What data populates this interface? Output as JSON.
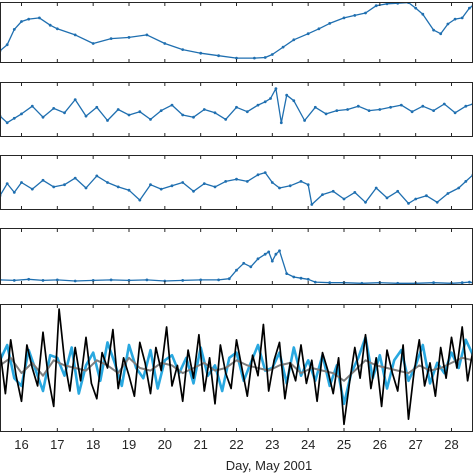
{
  "chart_data": {
    "type": "line",
    "xlabel": "Day, May 2001",
    "x_ticks": [
      16,
      17,
      18,
      19,
      20,
      21,
      22,
      23,
      24,
      25,
      26,
      27,
      28
    ],
    "xlim": [
      15.4,
      28.6
    ],
    "colors": {
      "marker_series": "#1f6fb0",
      "band_light": "#29a8e0",
      "band_mid": "#7f7f7f",
      "band_dark": "#000000"
    },
    "panels": [
      {
        "id": "panel-1",
        "ylim": [
          0,
          10
        ],
        "series": [
          {
            "style": "line-markers",
            "color": "#1f6fb0",
            "x": [
              15.4,
              15.6,
              15.8,
              16.0,
              16.2,
              16.5,
              16.8,
              17.0,
              17.5,
              18.0,
              18.5,
              19.0,
              19.5,
              20.0,
              20.5,
              21.0,
              21.5,
              22.0,
              22.5,
              22.8,
              23.0,
              23.3,
              23.6,
              24.0,
              24.3,
              24.6,
              25.0,
              25.3,
              25.6,
              25.9,
              26.2,
              26.5,
              26.8,
              27.0,
              27.2,
              27.5,
              27.7,
              27.9,
              28.1,
              28.3,
              28.5,
              28.6
            ],
            "y": [
              2.0,
              3.0,
              5.5,
              6.8,
              7.2,
              7.4,
              6.2,
              5.6,
              4.6,
              3.2,
              4.0,
              4.2,
              4.6,
              3.2,
              2.2,
              1.6,
              1.2,
              0.8,
              0.8,
              0.9,
              1.4,
              2.6,
              3.8,
              4.8,
              5.6,
              6.5,
              7.4,
              7.8,
              8.2,
              9.4,
              9.7,
              9.8,
              9.9,
              9.0,
              8.0,
              5.4,
              4.8,
              6.4,
              7.2,
              7.4,
              9.0,
              9.4
            ]
          }
        ]
      },
      {
        "id": "panel-2",
        "ylim": [
          0,
          10
        ],
        "series": [
          {
            "style": "line-markers",
            "color": "#1f6fb0",
            "x": [
              15.4,
              15.6,
              15.8,
              16.0,
              16.3,
              16.6,
              16.9,
              17.2,
              17.5,
              17.8,
              18.1,
              18.4,
              18.7,
              19.0,
              19.3,
              19.6,
              19.9,
              20.2,
              20.5,
              20.8,
              21.1,
              21.4,
              21.7,
              22.0,
              22.3,
              22.6,
              22.8,
              22.95,
              23.1,
              23.25,
              23.4,
              23.6,
              23.9,
              24.2,
              24.5,
              24.8,
              25.1,
              25.4,
              25.7,
              26.0,
              26.3,
              26.6,
              26.9,
              27.2,
              27.5,
              27.8,
              28.1,
              28.4,
              28.6
            ],
            "y": [
              3.8,
              2.6,
              3.4,
              4.2,
              5.6,
              3.6,
              5.2,
              4.4,
              6.8,
              3.8,
              5.4,
              3.0,
              5.0,
              4.0,
              4.6,
              3.2,
              4.8,
              5.8,
              4.0,
              3.6,
              5.0,
              4.4,
              3.2,
              5.4,
              4.6,
              5.8,
              6.4,
              7.0,
              8.8,
              2.6,
              7.6,
              6.6,
              3.0,
              5.4,
              4.2,
              4.8,
              5.0,
              5.6,
              4.8,
              5.0,
              5.4,
              5.8,
              4.6,
              5.6,
              4.8,
              6.0,
              4.4,
              5.6,
              6.0
            ]
          }
        ]
      },
      {
        "id": "panel-3",
        "ylim": [
          0,
          10
        ],
        "series": [
          {
            "style": "line-markers",
            "color": "#1f6fb0",
            "x": [
              15.4,
              15.6,
              15.8,
              16.0,
              16.3,
              16.6,
              16.9,
              17.2,
              17.5,
              17.8,
              18.1,
              18.4,
              18.7,
              19.0,
              19.3,
              19.6,
              19.9,
              20.2,
              20.5,
              20.8,
              21.1,
              21.4,
              21.7,
              22.0,
              22.3,
              22.6,
              22.8,
              23.0,
              23.2,
              23.5,
              23.8,
              24.0,
              24.1,
              24.4,
              24.7,
              25.0,
              25.3,
              25.6,
              25.9,
              26.2,
              26.5,
              26.8,
              27.0,
              27.3,
              27.6,
              27.9,
              28.2,
              28.4,
              28.6
            ],
            "y": [
              2.6,
              4.8,
              3.2,
              5.0,
              3.8,
              5.4,
              4.2,
              4.6,
              5.8,
              4.0,
              6.2,
              5.0,
              4.2,
              3.6,
              1.8,
              4.6,
              3.8,
              4.4,
              5.0,
              3.4,
              4.8,
              4.2,
              5.2,
              5.6,
              5.2,
              6.4,
              6.8,
              5.0,
              4.0,
              4.4,
              5.2,
              4.6,
              1.0,
              2.8,
              3.4,
              2.0,
              3.2,
              1.4,
              4.0,
              2.2,
              3.4,
              1.2,
              2.0,
              2.6,
              1.4,
              3.0,
              4.0,
              5.2,
              6.4
            ]
          }
        ]
      },
      {
        "id": "panel-4",
        "ylim": [
          0,
          10
        ],
        "series": [
          {
            "style": "line-markers",
            "color": "#1f6fb0",
            "x": [
              15.4,
              15.8,
              16.2,
              16.6,
              17.0,
              17.5,
              18.0,
              18.5,
              19.0,
              19.5,
              20.0,
              20.5,
              21.0,
              21.5,
              21.8,
              22.0,
              22.2,
              22.4,
              22.6,
              22.8,
              22.9,
              23.0,
              23.1,
              23.2,
              23.4,
              23.6,
              23.8,
              24.0,
              24.2,
              24.6,
              25.0,
              25.5,
              26.0,
              26.5,
              27.0,
              27.5,
              28.0,
              28.3,
              28.5,
              28.6
            ],
            "y": [
              0.9,
              0.8,
              1.0,
              0.8,
              0.9,
              0.7,
              0.8,
              0.9,
              0.8,
              0.9,
              0.7,
              0.8,
              0.9,
              0.9,
              1.1,
              2.6,
              3.8,
              3.2,
              4.6,
              5.4,
              5.8,
              4.2,
              5.4,
              6.0,
              2.0,
              1.4,
              1.2,
              1.0,
              0.5,
              0.4,
              0.4,
              0.3,
              0.4,
              0.3,
              0.3,
              0.4,
              0.3,
              0.4,
              0.5,
              0.4
            ]
          }
        ]
      },
      {
        "id": "panel-5",
        "ylim": [
          0,
          10
        ],
        "series": [
          {
            "style": "band",
            "color": "#29a8e0",
            "x": [
              15.4,
              15.6,
              15.8,
              16.0,
              16.2,
              16.4,
              16.6,
              16.8,
              17.0,
              17.2,
              17.4,
              17.6,
              17.8,
              18.0,
              18.2,
              18.4,
              18.6,
              18.8,
              19.0,
              19.2,
              19.4,
              19.6,
              19.8,
              20.0,
              20.2,
              20.4,
              20.6,
              20.8,
              21.0,
              21.2,
              21.4,
              21.6,
              21.8,
              22.0,
              22.2,
              22.4,
              22.6,
              22.8,
              23.0,
              23.2,
              23.4,
              23.6,
              23.8,
              24.0,
              24.2,
              24.4,
              24.6,
              24.8,
              25.0,
              25.2,
              25.4,
              25.6,
              25.8,
              26.0,
              26.2,
              26.4,
              26.6,
              26.8,
              27.0,
              27.2,
              27.4,
              27.6,
              27.8,
              28.0,
              28.2,
              28.4,
              28.6
            ],
            "y": [
              5.6,
              6.8,
              4.2,
              3.6,
              6.4,
              4.8,
              3.2,
              6.0,
              5.8,
              4.4,
              6.6,
              3.0,
              5.2,
              6.2,
              4.0,
              7.0,
              5.4,
              3.6,
              6.8,
              5.0,
              4.2,
              6.4,
              3.4,
              5.6,
              6.0,
              4.6,
              5.8,
              3.8,
              6.6,
              4.4,
              5.2,
              3.2,
              5.8,
              6.2,
              4.0,
              5.4,
              6.8,
              4.8,
              5.0,
              6.2,
              3.8,
              6.6,
              4.4,
              5.6,
              4.0,
              6.0,
              3.6,
              5.2,
              2.2,
              4.6,
              5.8,
              7.4,
              4.2,
              6.0,
              3.4,
              5.6,
              6.4,
              4.0,
              5.2,
              6.8,
              3.8,
              5.4,
              4.6,
              6.2,
              5.0,
              7.2,
              6.0
            ]
          },
          {
            "style": "band",
            "color": "#7f7f7f",
            "x": [
              15.4,
              15.7,
              16.0,
              16.3,
              16.6,
              16.9,
              17.2,
              17.5,
              17.8,
              18.1,
              18.4,
              18.7,
              19.0,
              19.3,
              19.6,
              19.9,
              20.2,
              20.5,
              20.8,
              21.1,
              21.4,
              21.7,
              22.0,
              22.3,
              22.6,
              22.9,
              23.2,
              23.5,
              23.8,
              24.1,
              24.4,
              24.7,
              25.0,
              25.3,
              25.6,
              25.9,
              26.2,
              26.5,
              26.8,
              27.1,
              27.4,
              27.7,
              28.0,
              28.3,
              28.6
            ],
            "y": [
              5.2,
              5.8,
              4.6,
              5.4,
              4.4,
              5.6,
              5.2,
              5.0,
              4.8,
              5.6,
              5.2,
              4.6,
              5.8,
              5.0,
              4.8,
              5.4,
              5.2,
              4.6,
              5.0,
              5.4,
              4.8,
              5.0,
              5.6,
              5.2,
              5.0,
              4.8,
              5.2,
              5.4,
              4.6,
              5.0,
              4.8,
              4.6,
              4.0,
              4.8,
              5.6,
              5.2,
              5.0,
              4.8,
              4.6,
              5.2,
              4.8,
              5.0,
              5.4,
              5.8,
              5.6
            ]
          },
          {
            "style": "band",
            "color": "#000000",
            "x": [
              15.4,
              15.55,
              15.7,
              15.85,
              16.0,
              16.15,
              16.3,
              16.45,
              16.6,
              16.75,
              16.9,
              17.05,
              17.2,
              17.35,
              17.5,
              17.65,
              17.8,
              17.95,
              18.1,
              18.25,
              18.4,
              18.55,
              18.7,
              18.85,
              19.0,
              19.15,
              19.3,
              19.45,
              19.6,
              19.75,
              19.9,
              20.05,
              20.2,
              20.35,
              20.5,
              20.65,
              20.8,
              20.95,
              21.1,
              21.25,
              21.4,
              21.55,
              21.7,
              21.85,
              22.0,
              22.15,
              22.3,
              22.45,
              22.6,
              22.75,
              22.9,
              23.05,
              23.2,
              23.35,
              23.5,
              23.65,
              23.8,
              23.95,
              24.1,
              24.25,
              24.4,
              24.55,
              24.7,
              24.85,
              25.0,
              25.15,
              25.3,
              25.45,
              25.6,
              25.75,
              25.9,
              26.05,
              26.2,
              26.35,
              26.5,
              26.65,
              26.8,
              26.95,
              27.1,
              27.25,
              27.4,
              27.55,
              27.7,
              27.85,
              28.0,
              28.15,
              28.3,
              28.45,
              28.6
            ],
            "y": [
              6.4,
              3.0,
              7.2,
              4.4,
              2.4,
              6.8,
              5.0,
              3.6,
              7.8,
              4.2,
              2.0,
              9.6,
              5.6,
              3.2,
              6.6,
              4.0,
              7.4,
              3.8,
              2.6,
              6.2,
              5.0,
              8.0,
              3.4,
              5.8,
              4.4,
              2.8,
              7.0,
              5.4,
              3.0,
              6.6,
              4.8,
              8.2,
              3.6,
              5.2,
              2.4,
              6.4,
              4.2,
              7.6,
              3.2,
              5.8,
              2.2,
              6.8,
              4.6,
              3.4,
              7.2,
              5.0,
              2.8,
              6.0,
              4.4,
              8.4,
              3.2,
              5.6,
              7.0,
              2.6,
              5.4,
              4.0,
              6.8,
              3.8,
              5.6,
              2.4,
              6.2,
              4.8,
              3.0,
              5.8,
              0.6,
              3.8,
              6.6,
              4.2,
              7.6,
              3.4,
              5.8,
              2.0,
              6.4,
              4.6,
              3.2,
              6.8,
              1.0,
              4.6,
              7.2,
              3.6,
              5.4,
              2.8,
              6.6,
              4.2,
              7.4,
              5.0,
              8.2,
              4.0,
              6.4
            ]
          }
        ]
      }
    ]
  }
}
